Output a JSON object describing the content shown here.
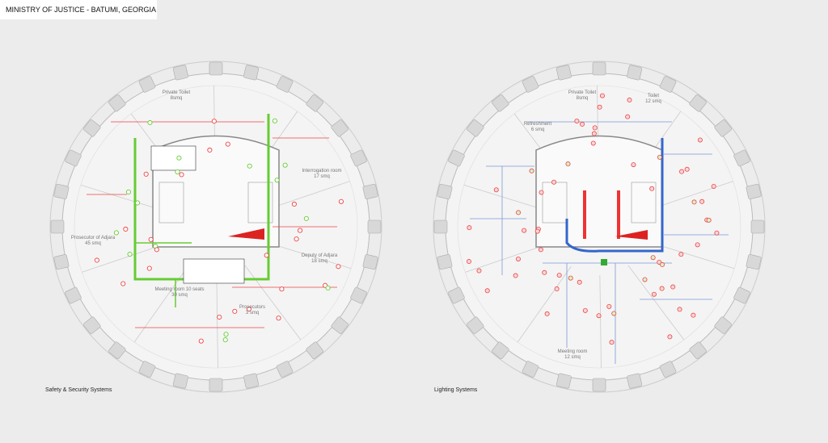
{
  "header": {
    "title": "MINISTRY OF JUSTICE - BATUMI, GEORGIA"
  },
  "plans": [
    {
      "caption": "Safety & Security Systems",
      "rooms": [
        {
          "name": "Private Toilet",
          "area": "8smq"
        },
        {
          "name": "Interrogation room",
          "area": "17 smq"
        },
        {
          "name": "Prosecutor of Adjara",
          "area": "45 smq"
        },
        {
          "name": "Deputy of Adjara",
          "area": "18 smq"
        },
        {
          "name": "Meeting room 10 seats",
          "area": "30 smq"
        },
        {
          "name": "Prosecutors",
          "area": "3 smq"
        }
      ]
    },
    {
      "caption": "Lighting Systems",
      "rooms": [
        {
          "name": "Private Toilet",
          "area": "8smq"
        },
        {
          "name": "Toilet",
          "area": "12 smq"
        },
        {
          "name": "Refreshment",
          "area": "6 smq"
        },
        {
          "name": "Meeting room",
          "area": "12 smq"
        }
      ]
    }
  ]
}
